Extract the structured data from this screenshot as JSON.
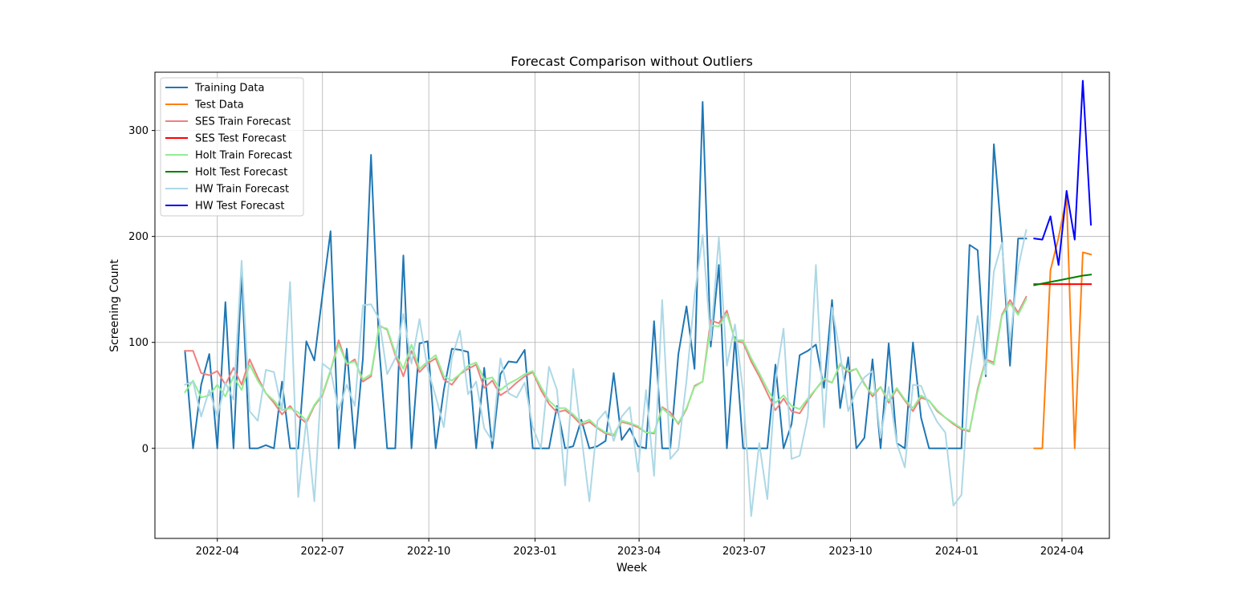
{
  "chart_data": {
    "type": "line",
    "title": "Forecast Comparison without Outliers",
    "xlabel": "Week",
    "ylabel": "Screening Count",
    "x_axis": "date",
    "xlim": [
      "2022-02-06",
      "2024-05-12"
    ],
    "ylim": [
      -85,
      355
    ],
    "grid": true,
    "legend_position": "top-left",
    "x_ticks": [
      {
        "date": "2022-04-01",
        "label": "2022-04"
      },
      {
        "date": "2022-07-01",
        "label": "2022-07"
      },
      {
        "date": "2022-10-01",
        "label": "2022-10"
      },
      {
        "date": "2023-01-01",
        "label": "2023-01"
      },
      {
        "date": "2023-04-01",
        "label": "2023-04"
      },
      {
        "date": "2023-07-01",
        "label": "2023-07"
      },
      {
        "date": "2023-10-01",
        "label": "2023-10"
      },
      {
        "date": "2024-01-01",
        "label": "2024-01"
      },
      {
        "date": "2024-04-01",
        "label": "2024-04"
      }
    ],
    "y_ticks": [
      0,
      100,
      200,
      300
    ],
    "training_start": "2022-03-04",
    "training_interval_days": 7,
    "test_start": "2024-03-08",
    "test_interval_days": 7,
    "series": [
      {
        "name": "Training Data",
        "color": "#1f77b4",
        "role": "train",
        "values": [
          92,
          0,
          60,
          89,
          0,
          138,
          0,
          165,
          0,
          0,
          3,
          0,
          63,
          0,
          0,
          101,
          83,
          145,
          205,
          0,
          94,
          0,
          85,
          277,
          95,
          0,
          0,
          182,
          0,
          99,
          101,
          0,
          55,
          94,
          93,
          91,
          0,
          76,
          0,
          70,
          82,
          81,
          93,
          0,
          0,
          0,
          40,
          0,
          2,
          27,
          0,
          2,
          7,
          71,
          8,
          19,
          2,
          0,
          120,
          0,
          0,
          89,
          134,
          75,
          327,
          96,
          173,
          0,
          105,
          0,
          0,
          0,
          0,
          79,
          0,
          23,
          88,
          92,
          98,
          57,
          140,
          38,
          86,
          0,
          10,
          84,
          0,
          99,
          5,
          0,
          100,
          29,
          0,
          0,
          0,
          0,
          0,
          192,
          187,
          68,
          287,
          197,
          78,
          198,
          198
        ]
      },
      {
        "name": "Test Data",
        "color": "#ff7f0e",
        "role": "test",
        "values": [
          0,
          0,
          168,
          199,
          237,
          0,
          185,
          183
        ]
      },
      {
        "name": "SES Train Forecast",
        "color": "#f08080",
        "role": "train",
        "values": [
          92,
          92,
          71,
          69,
          73,
          60,
          76,
          60,
          84,
          67,
          52,
          43,
          32,
          40,
          30,
          24,
          40,
          50,
          73,
          102,
          79,
          84,
          63,
          68,
          116,
          112,
          88,
          68,
          92,
          72,
          80,
          85,
          65,
          60,
          70,
          75,
          79,
          57,
          64,
          50,
          55,
          62,
          68,
          72,
          55,
          42,
          34,
          36,
          30,
          22,
          25,
          19,
          14,
          12,
          25,
          23,
          20,
          15,
          14,
          39,
          34,
          23,
          37,
          59,
          63,
          121,
          118,
          130,
          101,
          100,
          82,
          68,
          52,
          36,
          47,
          35,
          33,
          45,
          56,
          65,
          62,
          79,
          72,
          75,
          61,
          49,
          58,
          43,
          56,
          45,
          35,
          48,
          45,
          35,
          29,
          23,
          18,
          16,
          56,
          84,
          81,
          126,
          140,
          128,
          143
        ]
      },
      {
        "name": "SES Test Forecast",
        "color": "#ff0000",
        "role": "test",
        "values": [
          155,
          155,
          155,
          155,
          155,
          155,
          155,
          155
        ]
      },
      {
        "name": "Holt Train Forecast",
        "color": "#90ee90",
        "role": "train",
        "values": [
          53,
          64,
          48,
          50,
          60,
          49,
          68,
          55,
          79,
          64,
          52,
          45,
          36,
          38,
          34,
          26,
          41,
          51,
          74,
          98,
          80,
          82,
          65,
          70,
          115,
          113,
          90,
          75,
          98,
          75,
          82,
          88,
          68,
          64,
          70,
          78,
          81,
          65,
          67,
          55,
          61,
          65,
          70,
          73,
          58,
          45,
          38,
          38,
          32,
          24,
          27,
          20,
          15,
          13,
          26,
          24,
          21,
          15,
          15,
          38,
          31,
          24,
          38,
          58,
          63,
          116,
          115,
          127,
          102,
          102,
          85,
          71,
          56,
          43,
          50,
          40,
          37,
          47,
          56,
          66,
          62,
          80,
          73,
          75,
          60,
          51,
          58,
          45,
          57,
          46,
          38,
          50,
          45,
          36,
          29,
          24,
          19,
          17,
          54,
          83,
          79,
          125,
          137,
          126,
          141
        ]
      },
      {
        "name": "Holt Test Forecast",
        "color": "#008000",
        "role": "test",
        "values": [
          154,
          155.5,
          157,
          158.5,
          160,
          161.5,
          163,
          164
        ]
      },
      {
        "name": "HW Train Forecast",
        "color": "#add8e6",
        "role": "train",
        "values": [
          60,
          63,
          30,
          55,
          30,
          62,
          46,
          177,
          35,
          26,
          74,
          72,
          36,
          157,
          -46,
          27,
          -50,
          80,
          74,
          36,
          60,
          40,
          135,
          136,
          122,
          70,
          85,
          127,
          80,
          122,
          75,
          49,
          20,
          85,
          111,
          51,
          63,
          19,
          7,
          85,
          52,
          48,
          62,
          20,
          0,
          77,
          55,
          -35,
          75,
          12,
          -50,
          26,
          35,
          7,
          30,
          39,
          -22,
          55,
          -26,
          140,
          -10,
          -1,
          64,
          144,
          201,
          102,
          199,
          78,
          117,
          53,
          -64,
          5,
          -48,
          64,
          113,
          -10,
          -7,
          30,
          173,
          20,
          133,
          89,
          35,
          55,
          67,
          73,
          10,
          58,
          5,
          -18,
          60,
          59,
          40,
          25,
          15,
          -54,
          -44,
          70,
          125,
          70,
          167,
          194,
          100,
          170,
          206
        ]
      },
      {
        "name": "HW Test Forecast",
        "color": "#0000ff",
        "role": "test",
        "values": [
          198,
          197,
          219,
          173,
          243,
          197,
          347,
          211
        ]
      }
    ]
  }
}
